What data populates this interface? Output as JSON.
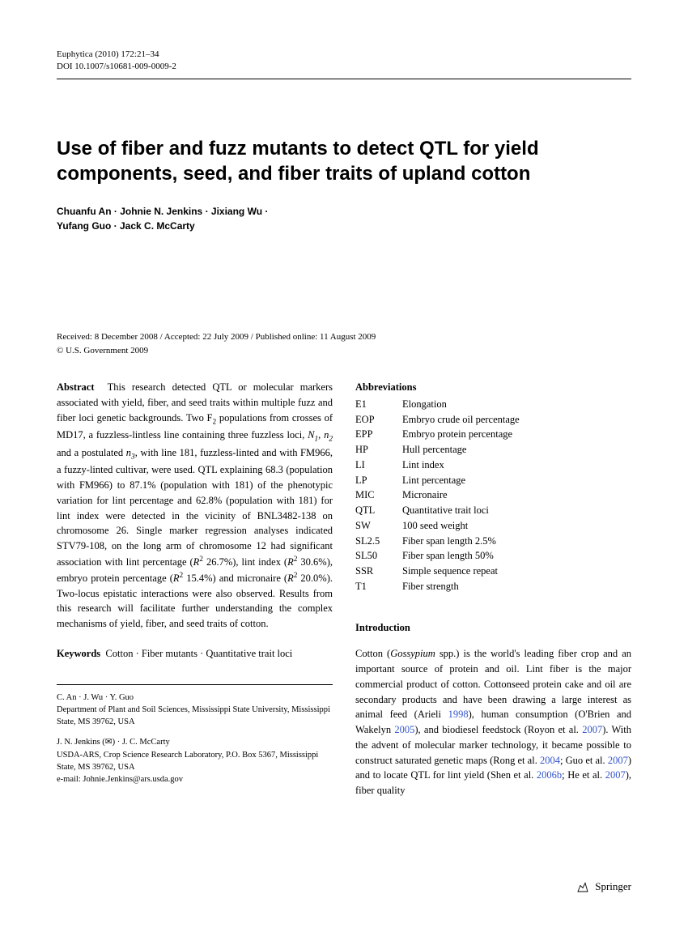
{
  "header": {
    "journal": "Euphytica (2010) 172:21–34",
    "doi": "DOI 10.1007/s10681-009-0009-2"
  },
  "title": "Use of fiber and fuzz mutants to detect QTL for yield components, seed, and fiber traits of upland cotton",
  "authors": "Chuanfu An · Johnie N. Jenkins · Jixiang Wu · Yufang Guo · Jack C. McCarty",
  "dates": {
    "line1": "Received: 8 December 2008 / Accepted: 22 July 2009 / Published online: 11 August 2009",
    "line2": "© U.S. Government 2009"
  },
  "abstract": {
    "label": "Abstract",
    "text_html": "This research detected QTL or molecular markers associated with yield, fiber, and seed traits within multiple fuzz and fiber loci genetic backgrounds. Two F<sub>2</sub> populations from crosses of MD17, a fuzzless-lintless line containing three fuzzless loci, <span class='italic'>N<sub>1</sub></span>, <span class='italic'>n<sub>2</sub></span> and a postulated <span class='italic'>n<sub>3</sub></span>, with line 181, fuzzless-linted and with FM966, a fuzzy-linted cultivar, were used. QTL explaining 68.3 (population with FM966) to 87.1% (population with 181) of the phenotypic variation for lint percentage and 62.8% (population with 181) for lint index were detected in the vicinity of BNL3482-138 on chromosome 26. Single marker regression analyses indicated STV79-108, on the long arm of chromosome 12 had significant association with lint percentage (<span class='italic'>R</span><sup>2</sup> 26.7%), lint index (<span class='italic'>R</span><sup>2</sup> 30.6%), embryo protein percentage (<span class='italic'>R</span><sup>2</sup> 15.4%) and micronaire (<span class='italic'>R</span><sup>2</sup> 20.0%). Two-locus epistatic interactions were also observed. Results from this research will facilitate further understanding the complex mechanisms of yield, fiber, and seed traits of cotton."
  },
  "keywords": {
    "label": "Keywords",
    "text": "Cotton · Fiber mutants · Quantitative trait loci"
  },
  "abbreviations": {
    "heading": "Abbreviations",
    "items": [
      {
        "code": "E1",
        "def": "Elongation"
      },
      {
        "code": "EOP",
        "def": "Embryo crude oil percentage"
      },
      {
        "code": "EPP",
        "def": "Embryo protein percentage"
      },
      {
        "code": "HP",
        "def": "Hull percentage"
      },
      {
        "code": "LI",
        "def": "Lint index"
      },
      {
        "code": "LP",
        "def": "Lint percentage"
      },
      {
        "code": "MIC",
        "def": "Micronaire"
      },
      {
        "code": "QTL",
        "def": "Quantitative trait loci"
      },
      {
        "code": "SW",
        "def": "100 seed weight"
      },
      {
        "code": "SL2.5",
        "def": "Fiber span length 2.5%"
      },
      {
        "code": "SL50",
        "def": "Fiber span length 50%"
      },
      {
        "code": "SSR",
        "def": "Simple sequence repeat"
      },
      {
        "code": "T1",
        "def": "Fiber strength"
      }
    ]
  },
  "intro": {
    "heading": "Introduction",
    "text_html": "Cotton (<span class='italic'>Gossypium</span> spp.) is the world's leading fiber crop and an important source of protein and oil. Lint fiber is the major commercial product of cotton. Cottonseed protein cake and oil are secondary products and have been drawing a large interest as animal feed (Arieli <span class='cite'>1998</span>), human consumption (O'Brien and Wakelyn <span class='cite'>2005</span>), and biodiesel feedstock (Royon et al. <span class='cite'>2007</span>). With the advent of molecular marker technology, it became possible to construct saturated genetic maps (Rong et al. <span class='cite'>2004</span>; Guo et al. <span class='cite'>2007</span>) and to locate QTL for lint yield (Shen et al. <span class='cite'>2006b</span>; He et al. <span class='cite'>2007</span>), fiber quality"
  },
  "footnotes": {
    "block1": {
      "names": "C. An · J. Wu · Y. Guo",
      "affil": "Department of Plant and Soil Sciences, Mississippi State University, Mississippi State, MS 39762, USA"
    },
    "block2": {
      "names": "J. N. Jenkins (✉) · J. C. McCarty",
      "affil": "USDA-ARS, Crop Science Research Laboratory, P.O. Box 5367, Mississippi State, MS 39762, USA",
      "email": "e-mail: Johnie.Jenkins@ars.usda.gov"
    }
  },
  "publisher": "Springer"
}
